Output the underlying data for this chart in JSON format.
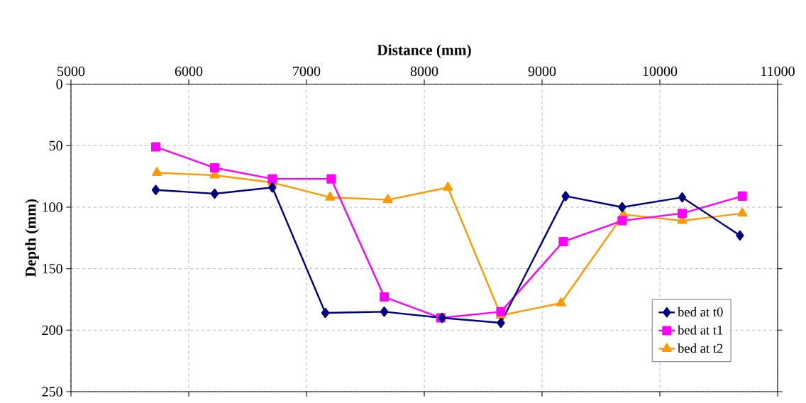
{
  "chart_data": {
    "type": "line",
    "xlabel": "Distance (mm)",
    "ylabel": "Depth (mm)",
    "xlim": [
      5000,
      11000
    ],
    "xticks": [
      5000,
      6000,
      7000,
      8000,
      9000,
      10000,
      11000
    ],
    "ylim": [
      250,
      0
    ],
    "yticks": [
      0,
      50,
      100,
      150,
      200,
      250
    ],
    "grid": true,
    "legend": "bottom right",
    "line_style": "solid",
    "series": [
      {
        "name": "bed at t0",
        "color": "#000080",
        "marker": "diamond",
        "x": [
          5720,
          6220,
          6710,
          7160,
          7660,
          8150,
          8650,
          9200,
          9680,
          10190,
          10680
        ],
        "values": [
          86,
          89,
          84,
          186,
          185,
          190,
          194,
          91,
          100,
          92,
          123
        ]
      },
      {
        "name": "bed at t1",
        "color": "#ff00ff",
        "marker": "square",
        "x": [
          5720,
          6220,
          6710,
          7210,
          7660,
          8140,
          8650,
          9180,
          9680,
          10190,
          10700
        ],
        "values": [
          51,
          68,
          77,
          77,
          173,
          190,
          185,
          128,
          111,
          105,
          91
        ]
      },
      {
        "name": "bed at t2",
        "color": "#ff9900",
        "marker": "triangle",
        "x": [
          5730,
          6220,
          6710,
          7200,
          7690,
          8200,
          8650,
          9160,
          9690,
          10190,
          10700
        ],
        "values": [
          72,
          74,
          80,
          92,
          94,
          84,
          188,
          178,
          106,
          111,
          105
        ]
      }
    ]
  }
}
